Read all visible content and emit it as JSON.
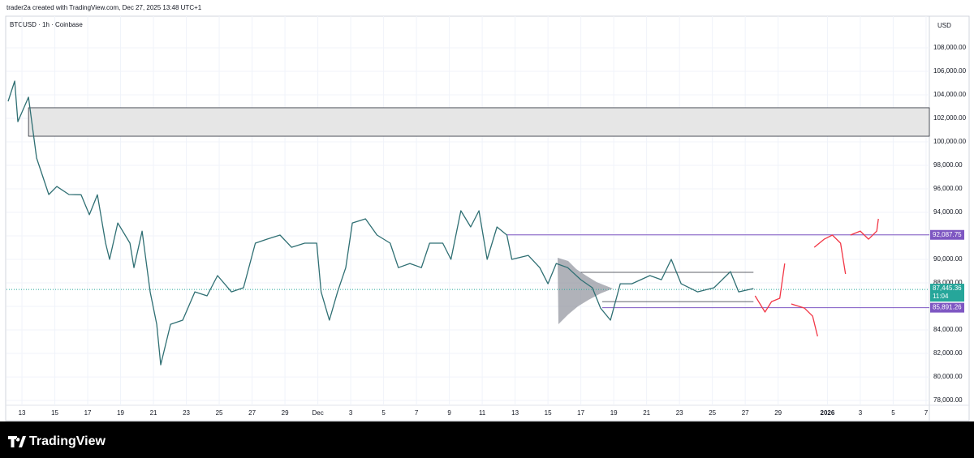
{
  "header": "trader2a created with TradingView.com, Dec 27, 2025 13:48 UTC+1",
  "footer": "TradingView",
  "chart_data": {
    "type": "line",
    "title": "BTCUSD · 1h · Coinbase",
    "currency_label": "USD",
    "grid": true,
    "xlim": [
      -0.94,
      55.2
    ],
    "ylim": [
      76350,
      110550
    ],
    "xticks": [
      {
        "value": 0,
        "label": "13"
      },
      {
        "value": 2,
        "label": "15"
      },
      {
        "value": 4,
        "label": "17"
      },
      {
        "value": 6,
        "label": "19"
      },
      {
        "value": 8,
        "label": "21"
      },
      {
        "value": 10,
        "label": "23"
      },
      {
        "value": 12,
        "label": "25"
      },
      {
        "value": 14,
        "label": "27"
      },
      {
        "value": 16,
        "label": "29"
      },
      {
        "value": 18,
        "label": "Dec"
      },
      {
        "value": 20,
        "label": "3"
      },
      {
        "value": 22,
        "label": "5"
      },
      {
        "value": 24,
        "label": "7"
      },
      {
        "value": 26,
        "label": "9"
      },
      {
        "value": 28,
        "label": "11"
      },
      {
        "value": 30,
        "label": "13"
      },
      {
        "value": 32,
        "label": "15"
      },
      {
        "value": 34,
        "label": "17"
      },
      {
        "value": 36,
        "label": "19"
      },
      {
        "value": 38,
        "label": "21"
      },
      {
        "value": 40,
        "label": "23"
      },
      {
        "value": 42,
        "label": "25"
      },
      {
        "value": 44,
        "label": "27"
      },
      {
        "value": 46,
        "label": "29"
      },
      {
        "value": 49,
        "label": "2026"
      },
      {
        "value": 51,
        "label": "3"
      },
      {
        "value": 53,
        "label": "5"
      },
      {
        "value": 55,
        "label": "7"
      }
    ],
    "yticks": [
      {
        "value": 78000,
        "label": "78,000.00"
      },
      {
        "value": 80000,
        "label": "80,000.00"
      },
      {
        "value": 82000,
        "label": "82,000.00"
      },
      {
        "value": 84000,
        "label": "84,000.00"
      },
      {
        "value": 86000,
        "label": "86,000.00"
      },
      {
        "value": 88000,
        "label": "88,000.00"
      },
      {
        "value": 90000,
        "label": "90,000.00"
      },
      {
        "value": 92000,
        "label": "92,000.00"
      },
      {
        "value": 94000,
        "label": "94,000.00"
      },
      {
        "value": 96000,
        "label": "96,000.00"
      },
      {
        "value": 98000,
        "label": "98,000.00"
      },
      {
        "value": 100000,
        "label": "100,000.00"
      },
      {
        "value": 102000,
        "label": "102,000.00"
      },
      {
        "value": 104000,
        "label": "104,000.00"
      },
      {
        "value": 106000,
        "label": "106,000.00"
      },
      {
        "value": 108000,
        "label": "108,000.00"
      }
    ],
    "series": [
      {
        "color": "#2f6f73",
        "x": [
          -0.84,
          -0.44,
          -0.25,
          0.4,
          0.89,
          1.63,
          2.12,
          2.86,
          3.6,
          4.1,
          4.59,
          5.09,
          5.33,
          5.83,
          6.57,
          6.81,
          7.31,
          7.8,
          8.2,
          8.44,
          9.04,
          9.78,
          10.52,
          11.26,
          11.9,
          12.74,
          13.48,
          14.2,
          14.9,
          15.7,
          16.4,
          17.2,
          17.93,
          18.2,
          18.7,
          19.2,
          19.7,
          20.1,
          20.9,
          21.6,
          22.4,
          22.9,
          23.6,
          24.3,
          24.8,
          25.6,
          26.1,
          26.7,
          27.3,
          27.8,
          28.3,
          28.9,
          29.5,
          29.8,
          30.8,
          31.5,
          32.0,
          32.5,
          33.2,
          34.0,
          34.7,
          35.2,
          35.8,
          36.4,
          37.1,
          38.2,
          38.9,
          39.5,
          40.1,
          41.1,
          42.1,
          43.1,
          43.6,
          44.5
        ],
        "values": [
          103450,
          105170,
          101720,
          103800,
          98620,
          95520,
          96200,
          95520,
          95500,
          93800,
          95500,
          91380,
          90000,
          93100,
          91380,
          89300,
          92400,
          87240,
          84480,
          81030,
          84480,
          84830,
          87240,
          86900,
          88620,
          87240,
          87590,
          91380,
          91720,
          92070,
          91030,
          91380,
          91380,
          87240,
          84830,
          87240,
          89300,
          93100,
          93450,
          92070,
          91380,
          89300,
          89650,
          89300,
          91380,
          91380,
          90000,
          94140,
          92760,
          94140,
          90000,
          92760,
          92070,
          90000,
          90340,
          89300,
          87930,
          89650,
          89300,
          88270,
          87590,
          85860,
          84830,
          87930,
          87930,
          88620,
          88270,
          90000,
          87930,
          87240,
          87590,
          88960,
          87240,
          87520
        ]
      },
      {
        "color": "#f23645",
        "x": [
          44.6,
          45.2,
          45.6,
          46.1,
          46.4,
          null,
          46.8,
          47.6,
          48.1,
          48.4,
          null,
          48.2,
          48.8,
          49.3,
          49.8,
          50.1,
          null,
          50.4,
          51.0,
          51.5,
          52.0,
          52.1
        ],
        "values": [
          86900,
          85520,
          86410,
          86690,
          89650,
          null,
          86210,
          85860,
          85170,
          83450,
          null,
          91030,
          91720,
          92070,
          91380,
          88760,
          null,
          92070,
          92410,
          91720,
          92410,
          93450
        ]
      }
    ],
    "zone": {
      "ylim": [
        100480,
        102900
      ],
      "x_start": 0.4
    },
    "range_lines": [
      {
        "value": 88900,
        "x": [
          34.0,
          44.5
        ]
      },
      {
        "value": 86410,
        "x": [
          35.3,
          44.5
        ]
      }
    ],
    "levels": [
      {
        "value": 92087.75,
        "label": "92,087.75",
        "x_start": 29.5,
        "color": "#7e57c2"
      },
      {
        "value": 85891.26,
        "label": "85,891.26",
        "x_start": 35.3,
        "color": "#7e57c2"
      }
    ],
    "current_price": {
      "value": 87445.36,
      "label": "87,445.36",
      "countdown": "11:04",
      "color": "#26a69a"
    }
  }
}
